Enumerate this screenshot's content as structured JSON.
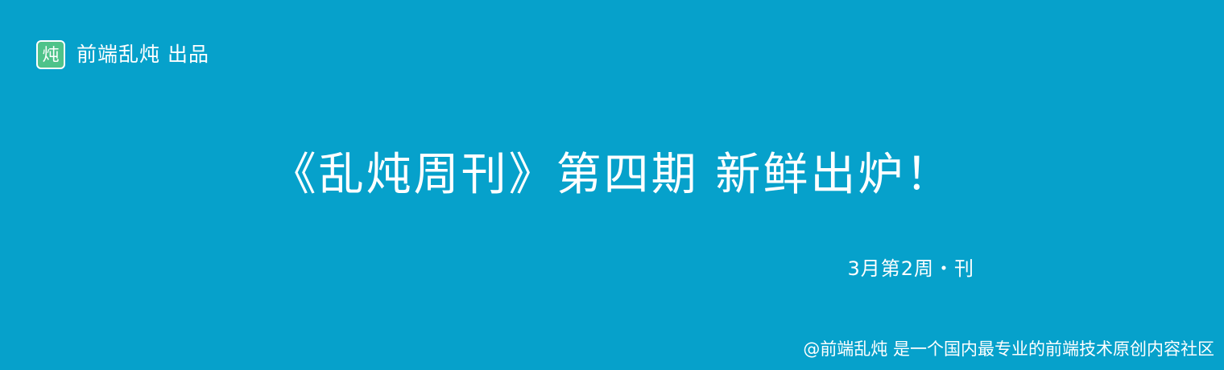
{
  "brand": {
    "logo_char": "炖",
    "text": "前端乱炖 出品"
  },
  "headline": "《乱炖周刊》第四期 新鲜出炉！",
  "issue_label": "3月第2周・刊",
  "footer_text": "@前端乱炖 是一个国内最专业的前端技术原创内容社区",
  "colors": {
    "background": "#06a1cb",
    "logo_bg": "#4fc38a",
    "text": "#ffffff"
  },
  "icons": {
    "brand_logo": "dun-character-logo"
  }
}
